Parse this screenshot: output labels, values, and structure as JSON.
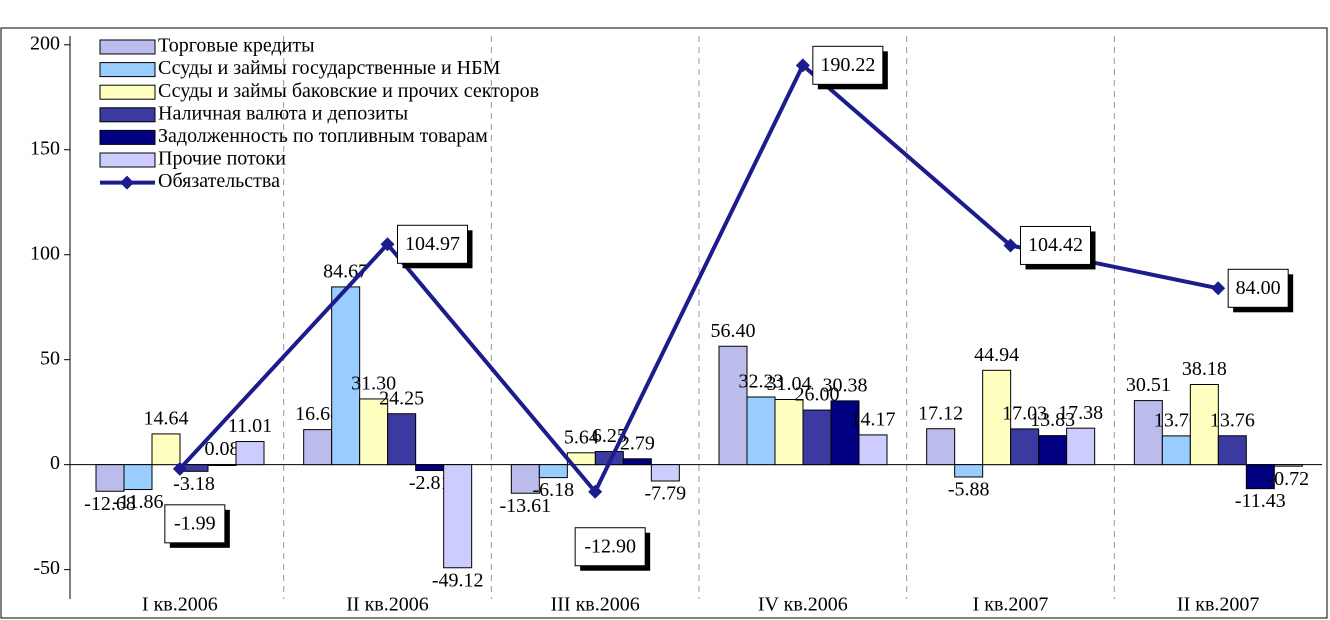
{
  "chart_data": {
    "type": "bar",
    "categories": [
      "I кв.2006",
      "II кв.2006",
      "III кв.2006",
      "IV кв.2006",
      "I кв.2007",
      "II кв.2007"
    ],
    "ylim": [
      -64,
      208
    ],
    "yticks": [
      -50,
      0,
      50,
      100,
      150,
      200
    ],
    "legend": "upper left",
    "series": [
      {
        "name": "Торговые кредиты",
        "color": "#bcbcec",
        "values": [
          -12.68,
          16.68,
          -13.61,
          56.4,
          17.12,
          30.51
        ],
        "value_labels": [
          "-12.68",
          "16.68",
          "-13.61",
          "56.40",
          "17.12",
          "30.51"
        ]
      },
      {
        "name": "Ссуды и займы государственные и НБМ",
        "color": "#99ccff",
        "values": [
          -11.86,
          84.67,
          -6.18,
          32.23,
          -5.88,
          13.7
        ],
        "value_labels": [
          "-11.86",
          "84.67",
          "-6.18",
          "32.23",
          "-5.88",
          "13.70"
        ]
      },
      {
        "name": "Ссуды и займы баковские и прочих секторов",
        "color": "#ffffc0",
        "values": [
          14.64,
          31.3,
          5.64,
          31.04,
          44.94,
          38.18
        ],
        "value_labels": [
          "14.64",
          "31.30",
          "5.64",
          "31.04",
          "44.94",
          "38.18"
        ]
      },
      {
        "name": "Наличная валюта и депозиты",
        "color": "#3a3aa0",
        "values": [
          -3.18,
          24.25,
          6.25,
          26.0,
          17.03,
          13.76
        ],
        "value_labels": [
          "-3.18",
          "24.25",
          "6.25",
          "26.00",
          "17.03",
          "13.76"
        ]
      },
      {
        "name": "Задолженность по топливным товарам",
        "color": "#000080",
        "values": [
          0.08,
          -2.81,
          2.79,
          30.38,
          13.83,
          -11.43
        ],
        "value_labels": [
          "0.08",
          "-2.81",
          "2.79",
          "30.38",
          "13.83",
          "-11.43"
        ]
      },
      {
        "name": "Прочие потоки",
        "color": "#ccccff",
        "values": [
          11.01,
          -49.12,
          -7.79,
          14.17,
          17.38,
          -0.72
        ],
        "value_labels": [
          "11.01",
          "-49.12",
          "-7.79",
          "14.17",
          "17.38",
          "-0.72"
        ]
      },
      {
        "name": "Обязательства",
        "type": "line",
        "color": "#1c1c8c",
        "values": [
          -1.99,
          104.97,
          -12.9,
          190.22,
          104.42,
          84.0
        ],
        "value_labels": [
          "-1.99",
          "104.97",
          "-12.90",
          "190.22",
          "104.42",
          "84.00"
        ]
      }
    ]
  }
}
